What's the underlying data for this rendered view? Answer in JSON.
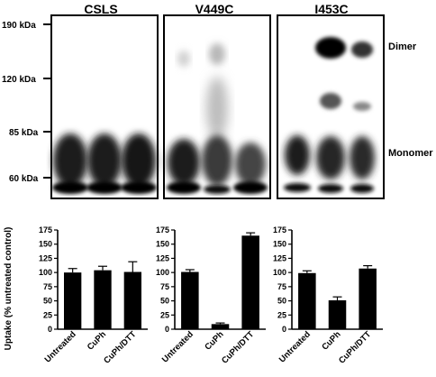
{
  "figure": {
    "blot": {
      "panels": [
        "CSLS",
        "V449C",
        "I453C"
      ],
      "markers": [
        "190 kDa",
        "120 kDa",
        "85 kDa",
        "60 kDa"
      ],
      "marker_values_kda": [
        190,
        120,
        85,
        60
      ],
      "band_labels": {
        "dimer": "Dimer",
        "monomer": "Monomer"
      },
      "band_color": "#0a0a0a"
    },
    "ylabel": "Uptake (%  untreated control)",
    "bar_color": "#000000"
  },
  "chart_data": [
    {
      "type": "bar",
      "title": "",
      "categories": [
        "Untreated",
        "CuPh",
        "CuPh/DTT"
      ],
      "values": [
        100,
        104,
        101
      ],
      "errors": [
        7,
        7,
        18
      ],
      "ylabel": "Uptake (%  untreated control)",
      "ylim": [
        0,
        175
      ],
      "yticks": [
        0,
        25,
        50,
        75,
        100,
        125,
        150,
        175
      ]
    },
    {
      "type": "bar",
      "title": "",
      "categories": [
        "Untreated",
        "CuPh",
        "CuPh/DTT"
      ],
      "values": [
        101,
        9,
        165
      ],
      "errors": [
        4,
        2,
        5
      ],
      "ylabel": "",
      "ylim": [
        0,
        175
      ],
      "yticks": [
        0,
        25,
        50,
        75,
        100,
        125,
        150,
        175
      ]
    },
    {
      "type": "bar",
      "title": "",
      "categories": [
        "Untreated",
        "CuPh",
        "CuPh/DTT"
      ],
      "values": [
        99,
        51,
        107
      ],
      "errors": [
        4,
        6,
        5
      ],
      "ylabel": "",
      "ylim": [
        0,
        175
      ],
      "yticks": [
        0,
        25,
        50,
        75,
        100,
        125,
        150,
        175
      ]
    }
  ]
}
